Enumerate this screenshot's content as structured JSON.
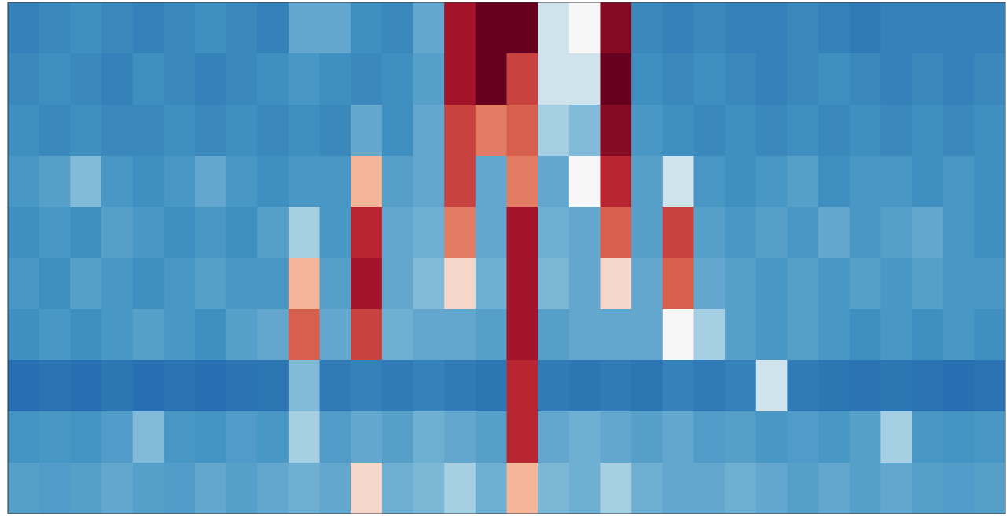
{
  "chart_data": {
    "type": "heatmap",
    "clim": [
      0,
      1
    ],
    "colormap": [
      "#053061",
      "#2166ac",
      "#4393c3",
      "#92c5de",
      "#f7f7f7",
      "#f4a582",
      "#d6604d",
      "#b2182b",
      "#67001f"
    ],
    "values": [
      [
        0.2,
        0.22,
        0.24,
        0.22,
        0.2,
        0.22,
        0.24,
        0.22,
        0.2,
        0.3,
        0.3,
        0.24,
        0.22,
        0.3,
        0.9,
        1,
        1,
        0.45,
        0.5,
        0.95,
        0.22,
        0.2,
        0.22,
        0.2,
        0.2,
        0.22,
        0.2,
        0.18,
        0.2,
        0.2,
        0.2,
        0.2
      ],
      [
        0.22,
        0.24,
        0.22,
        0.2,
        0.24,
        0.22,
        0.2,
        0.22,
        0.24,
        0.26,
        0.24,
        0.22,
        0.24,
        0.28,
        0.9,
        1,
        0.8,
        0.45,
        0.45,
        1,
        0.24,
        0.22,
        0.24,
        0.22,
        0.2,
        0.22,
        0.24,
        0.22,
        0.2,
        0.22,
        0.2,
        0.22
      ],
      [
        0.24,
        0.22,
        0.24,
        0.22,
        0.22,
        0.24,
        0.22,
        0.24,
        0.22,
        0.24,
        0.22,
        0.3,
        0.24,
        0.3,
        0.8,
        0.7,
        0.75,
        0.4,
        0.35,
        0.95,
        0.26,
        0.24,
        0.22,
        0.24,
        0.22,
        0.24,
        0.22,
        0.24,
        0.22,
        0.24,
        0.22,
        0.24
      ],
      [
        0.26,
        0.28,
        0.35,
        0.26,
        0.24,
        0.26,
        0.3,
        0.26,
        0.24,
        0.26,
        0.26,
        0.6,
        0.28,
        0.3,
        0.8,
        0.3,
        0.7,
        0.3,
        0.5,
        0.85,
        0.28,
        0.45,
        0.26,
        0.24,
        0.26,
        0.28,
        0.24,
        0.26,
        0.26,
        0.24,
        0.26,
        0.24
      ],
      [
        0.24,
        0.26,
        0.24,
        0.28,
        0.26,
        0.24,
        0.26,
        0.24,
        0.28,
        0.4,
        0.26,
        0.85,
        0.3,
        0.32,
        0.7,
        0.3,
        0.9,
        0.32,
        0.3,
        0.75,
        0.28,
        0.8,
        0.28,
        0.26,
        0.28,
        0.26,
        0.3,
        0.26,
        0.28,
        0.3,
        0.26,
        0.24
      ],
      [
        0.26,
        0.24,
        0.28,
        0.26,
        0.24,
        0.26,
        0.28,
        0.26,
        0.26,
        0.6,
        0.28,
        0.9,
        0.3,
        0.35,
        0.55,
        0.32,
        0.9,
        0.34,
        0.3,
        0.55,
        0.3,
        0.75,
        0.3,
        0.28,
        0.26,
        0.28,
        0.26,
        0.28,
        0.26,
        0.28,
        0.26,
        0.26
      ],
      [
        0.24,
        0.26,
        0.24,
        0.26,
        0.28,
        0.26,
        0.24,
        0.28,
        0.3,
        0.75,
        0.3,
        0.8,
        0.32,
        0.3,
        0.3,
        0.28,
        0.9,
        0.28,
        0.3,
        0.3,
        0.3,
        0.5,
        0.4,
        0.28,
        0.26,
        0.28,
        0.26,
        0.24,
        0.26,
        0.24,
        0.26,
        0.24
      ],
      [
        0.15,
        0.16,
        0.15,
        0.17,
        0.15,
        0.16,
        0.15,
        0.16,
        0.17,
        0.35,
        0.18,
        0.2,
        0.18,
        0.2,
        0.18,
        0.17,
        0.85,
        0.18,
        0.17,
        0.18,
        0.17,
        0.2,
        0.18,
        0.2,
        0.45,
        0.18,
        0.17,
        0.16,
        0.17,
        0.16,
        0.15,
        0.16
      ],
      [
        0.25,
        0.26,
        0.25,
        0.27,
        0.35,
        0.26,
        0.25,
        0.27,
        0.26,
        0.4,
        0.27,
        0.3,
        0.28,
        0.32,
        0.3,
        0.28,
        0.85,
        0.3,
        0.32,
        0.3,
        0.28,
        0.3,
        0.27,
        0.28,
        0.26,
        0.27,
        0.26,
        0.28,
        0.4,
        0.26,
        0.25,
        0.26
      ],
      [
        0.28,
        0.27,
        0.28,
        0.3,
        0.28,
        0.27,
        0.3,
        0.28,
        0.3,
        0.32,
        0.3,
        0.55,
        0.32,
        0.34,
        0.4,
        0.32,
        0.6,
        0.34,
        0.32,
        0.4,
        0.32,
        0.3,
        0.3,
        0.32,
        0.3,
        0.28,
        0.3,
        0.28,
        0.3,
        0.28,
        0.27,
        0.28
      ]
    ]
  }
}
